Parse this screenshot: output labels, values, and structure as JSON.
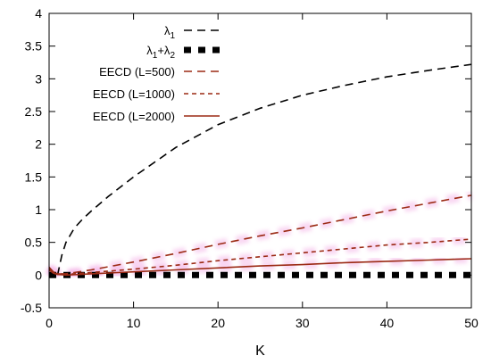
{
  "chart_data": {
    "type": "line",
    "title": "",
    "xlabel": "K",
    "ylabel": "",
    "xlim": [
      0,
      50
    ],
    "ylim": [
      -0.5,
      4
    ],
    "grid": false,
    "legend_position": "top-right",
    "x_ticks": [
      "0",
      "10",
      "20",
      "30",
      "40",
      "50"
    ],
    "y_ticks": [
      "-0.5",
      "0",
      "0.5",
      "1",
      "1.5",
      "2",
      "2.5",
      "3",
      "3.5",
      "4"
    ],
    "series": [
      {
        "name": "λ1",
        "legend_main": "λ",
        "legend_sub": "1",
        "color": "#000000",
        "style": "long-dash",
        "x": [
          1,
          1.5,
          2,
          3,
          4,
          5,
          7,
          10,
          15,
          20,
          25,
          30,
          35,
          40,
          45,
          50
        ],
        "y": [
          0.0,
          0.3,
          0.5,
          0.72,
          0.86,
          0.98,
          1.2,
          1.5,
          1.95,
          2.3,
          2.55,
          2.75,
          2.9,
          3.03,
          3.13,
          3.22
        ]
      },
      {
        "name": "λ1+λ2",
        "legend_main1": "λ",
        "legend_sub1": "1",
        "legend_plus": "+λ",
        "legend_sub2": "2",
        "color": "#000000",
        "style": "dotted-thick",
        "x": [
          0,
          50
        ],
        "y": [
          0,
          0
        ]
      },
      {
        "name": "EECD (L=500)",
        "color": "#9b2a14",
        "style": "long-dash",
        "x": [
          0,
          0.5,
          1,
          2,
          5,
          10,
          15,
          20,
          25,
          30,
          35,
          40,
          45,
          50
        ],
        "y": [
          0.12,
          0.05,
          0.02,
          0.02,
          0.08,
          0.2,
          0.33,
          0.47,
          0.6,
          0.72,
          0.85,
          0.98,
          1.1,
          1.22
        ]
      },
      {
        "name": "EECD (L=1000)",
        "color": "#9b2a14",
        "style": "short-dash",
        "x": [
          0,
          0.5,
          1,
          2,
          5,
          10,
          15,
          20,
          25,
          30,
          35,
          40,
          45,
          50
        ],
        "y": [
          0.1,
          0.04,
          0.02,
          0.01,
          0.04,
          0.09,
          0.15,
          0.22,
          0.28,
          0.34,
          0.4,
          0.46,
          0.5,
          0.55
        ]
      },
      {
        "name": "EECD (L=2000)",
        "color": "#9b2a14",
        "style": "solid",
        "x": [
          0,
          0.5,
          1,
          2,
          5,
          10,
          15,
          20,
          25,
          30,
          35,
          40,
          45,
          50
        ],
        "y": [
          0.08,
          0.03,
          0.01,
          0.0,
          0.02,
          0.05,
          0.08,
          0.11,
          0.14,
          0.16,
          0.19,
          0.21,
          0.23,
          0.25
        ]
      }
    ]
  }
}
